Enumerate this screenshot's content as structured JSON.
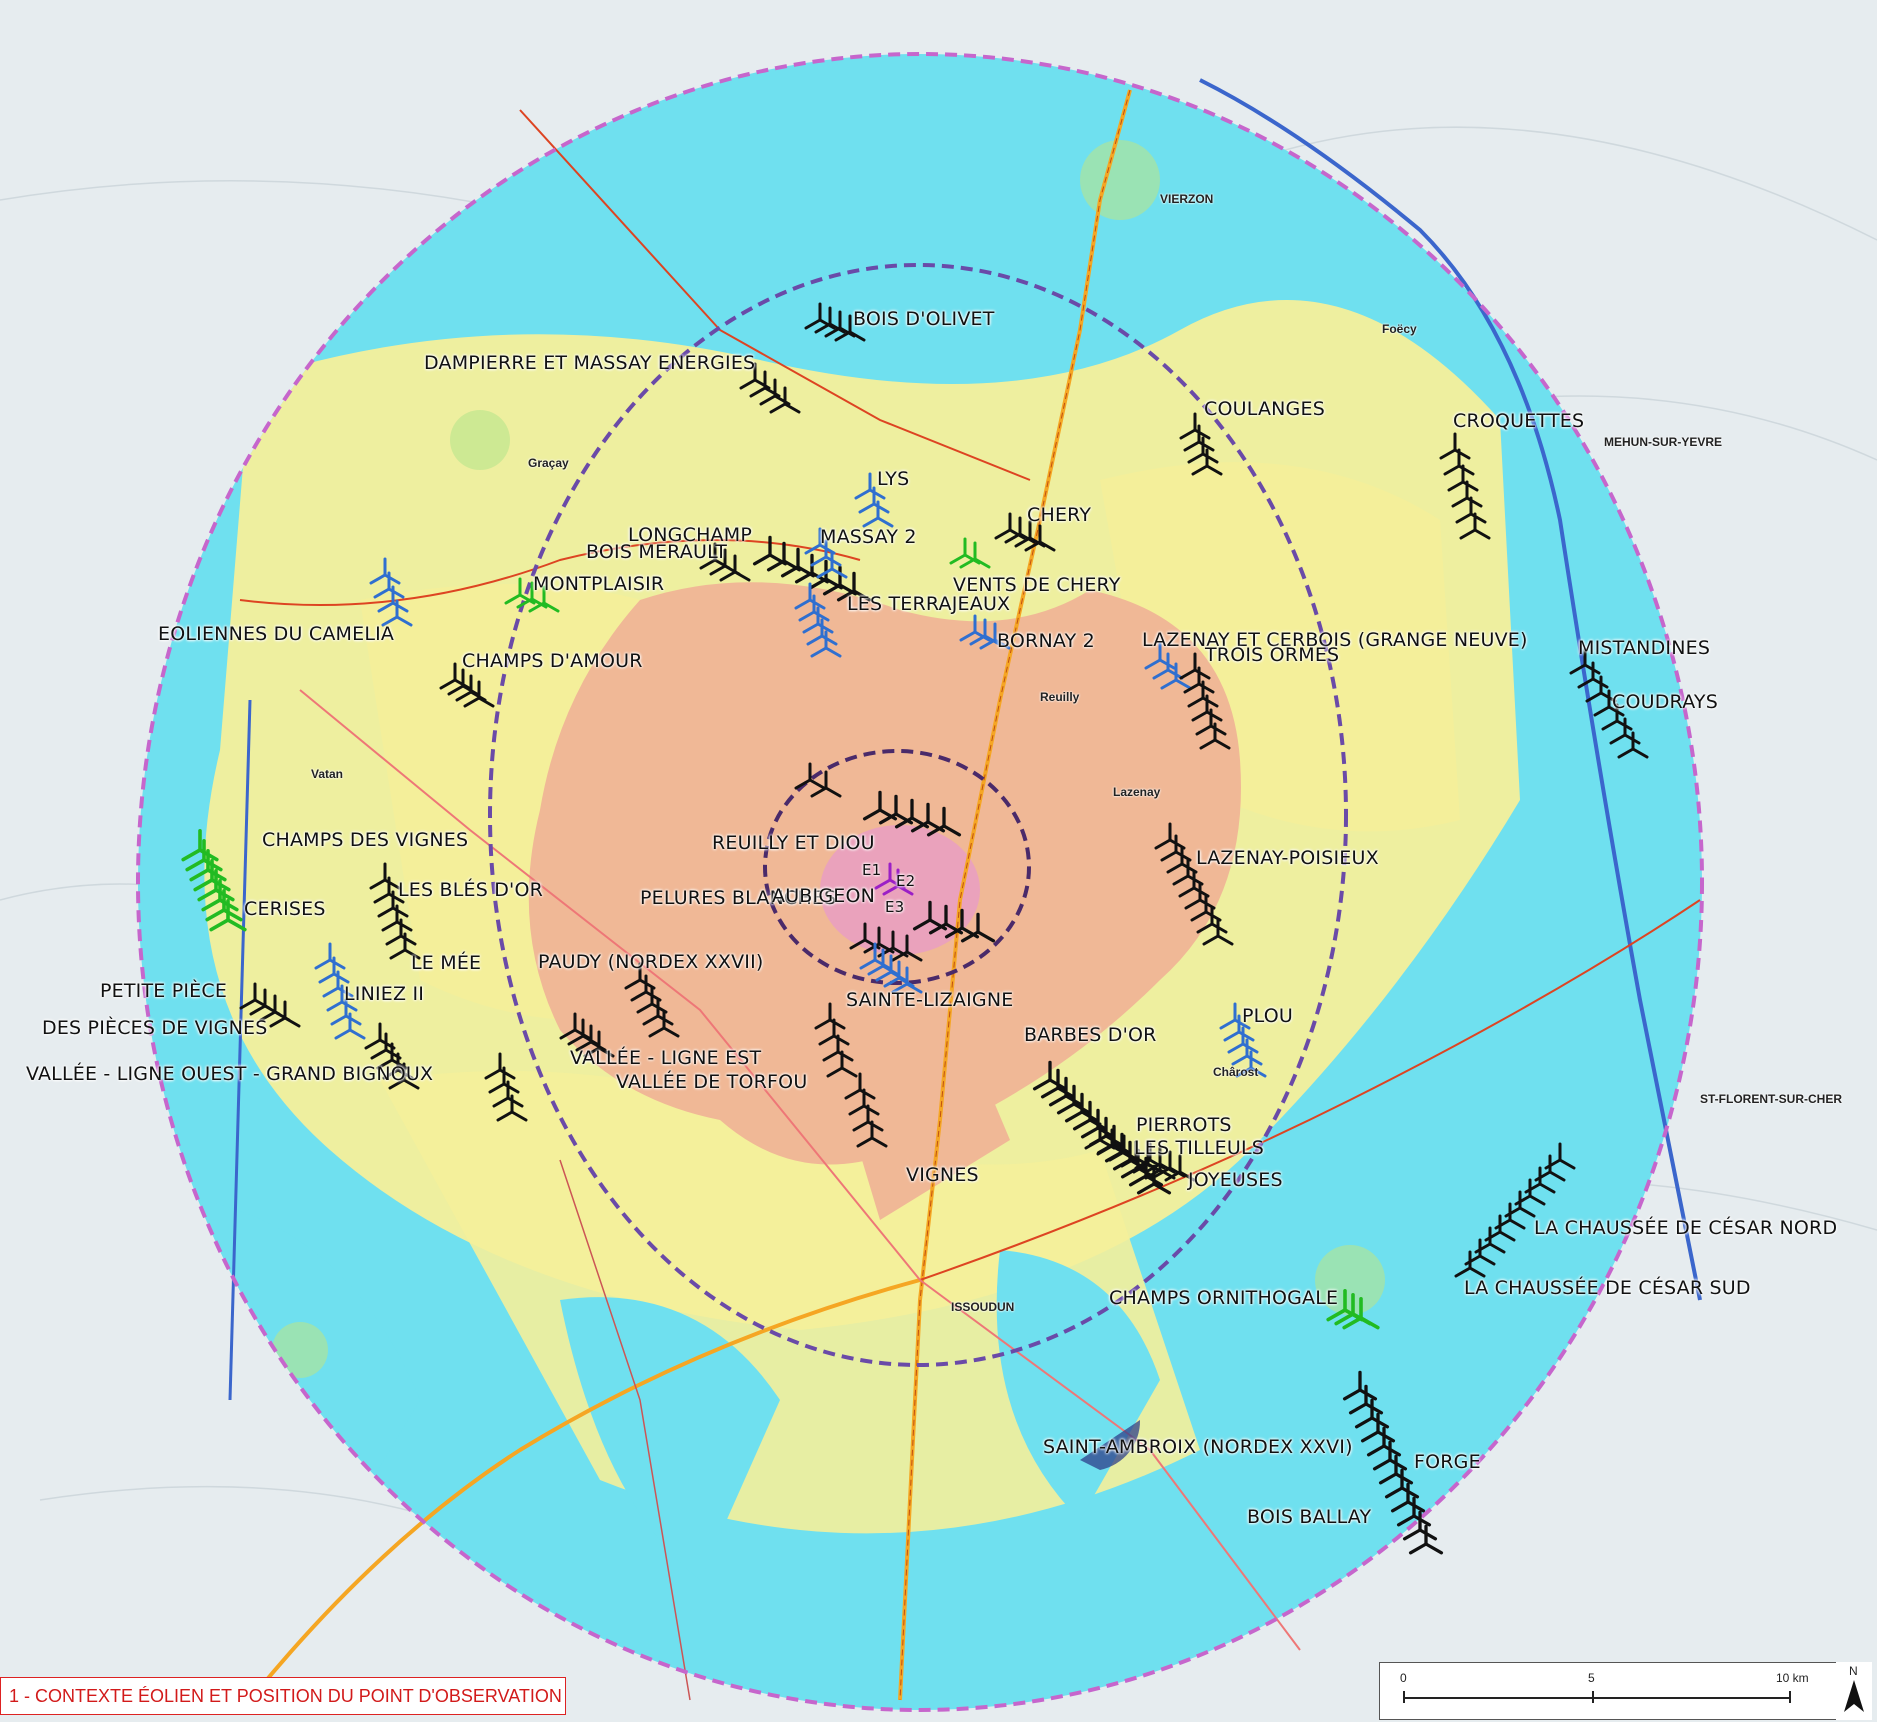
{
  "map": {
    "colors": {
      "background": "#e9eef0",
      "cyan": "#6fe0ef",
      "yellow": "#f4ef9a",
      "salmon": "#f0b896",
      "pink": "#e9a0c0",
      "outer_ring": "#c666cc",
      "middle_ring": "#6a4aa8",
      "inner_ring": "#4a2a6a",
      "turbine_black": "#111111",
      "turbine_blue": "#2f6fd0",
      "turbine_green": "#22bb22",
      "turbine_purple": "#9b1fc6"
    },
    "towns": [
      "VIERZON",
      "ISSOUDUN",
      "Graçay",
      "Vatan",
      "Reuilly",
      "MEHUN-SUR-YEVRE",
      "Foëcy",
      "Chârost",
      "Lazenay",
      "ST-FLORENT-SUR-CHER"
    ],
    "wind_farms": [
      {
        "name": "BOIS D'OLIVET",
        "color": "black"
      },
      {
        "name": "DAMPIERRE ET MASSAY ENERGIES",
        "color": "black"
      },
      {
        "name": "COULANGES",
        "color": "black"
      },
      {
        "name": "CROQUETTES",
        "color": "black"
      },
      {
        "name": "LYS",
        "color": "blue"
      },
      {
        "name": "CHERY",
        "color": "black"
      },
      {
        "name": "LONGCHAMP",
        "color": "black"
      },
      {
        "name": "MASSAY 2",
        "color": "blue"
      },
      {
        "name": "BOIS MERAULT",
        "color": "black"
      },
      {
        "name": "MONTPLAISIR",
        "color": "green"
      },
      {
        "name": "VENTS DE CHERY",
        "color": "green"
      },
      {
        "name": "LES TERRAJEAUX",
        "color": "blue"
      },
      {
        "name": "EOLIENNES DU CAMELIA",
        "color": "blue"
      },
      {
        "name": "BORNAY 2",
        "color": "blue"
      },
      {
        "name": "LAZENAY ET CERBOIS (GRANGE NEUVE)",
        "color": "blue"
      },
      {
        "name": "TROIS ORMES",
        "color": "black"
      },
      {
        "name": "MISTANDINES",
        "color": "black"
      },
      {
        "name": "CHAMPS D'AMOUR",
        "color": "black"
      },
      {
        "name": "COUDRAYS",
        "color": "black"
      },
      {
        "name": "REUILLY ET DIOU",
        "color": "black"
      },
      {
        "name": "CHAMPS DES VIGNES",
        "color": "green"
      },
      {
        "name": "LES BLÉS D'OR",
        "color": "black"
      },
      {
        "name": "LAZENAY-POISIEUX",
        "color": "black"
      },
      {
        "name": "CERISES",
        "color": "green"
      },
      {
        "name": "PELURES BLANCHES",
        "color": "black"
      },
      {
        "name": "AUBIGEON",
        "color": "purple"
      },
      {
        "name": "LE MÉE",
        "color": "black"
      },
      {
        "name": "PAUDY (NORDEX XXVII)",
        "color": "black"
      },
      {
        "name": "PETITE PIÈCE",
        "color": "black"
      },
      {
        "name": "LINIEZ II",
        "color": "blue"
      },
      {
        "name": "SAINTE-LIZAIGNE",
        "color": "blue"
      },
      {
        "name": "DES PIÈCES DE VIGNES",
        "color": "black"
      },
      {
        "name": "PLOU",
        "color": "blue"
      },
      {
        "name": "BARBES D'OR",
        "color": "black"
      },
      {
        "name": "VALLÉE - LIGNE EST",
        "color": "black"
      },
      {
        "name": "VALLÉE - LIGNE OUEST - GRAND BIGNOUX",
        "color": "black"
      },
      {
        "name": "VALLÉE DE TORFOU",
        "color": "black"
      },
      {
        "name": "PIERROTS",
        "color": "black"
      },
      {
        "name": "LES TILLEULS",
        "color": "black"
      },
      {
        "name": "VIGNES",
        "color": "black"
      },
      {
        "name": "JOYEUSES",
        "color": "black"
      },
      {
        "name": "LA CHAUSSÉE DE CÉSAR NORD",
        "color": "black"
      },
      {
        "name": "LA CHAUSSÉE DE CÉSAR SUD",
        "color": "black"
      },
      {
        "name": "CHAMPS ORNITHOGALE",
        "color": "green"
      },
      {
        "name": "SAINT-AMBROIX (NORDEX XXVI)",
        "color": "black"
      },
      {
        "name": "FORGE",
        "color": "black"
      },
      {
        "name": "BOIS BALLAY",
        "color": "black"
      }
    ],
    "project_turbines": [
      "E1",
      "E2",
      "E3"
    ]
  },
  "caption": "1 - CONTEXTE ÉOLIEN ET POSITION DU POINT D'OBSERVATION",
  "scale": {
    "ticks": [
      "0",
      "5",
      "10 km"
    ],
    "north_label": "N"
  }
}
